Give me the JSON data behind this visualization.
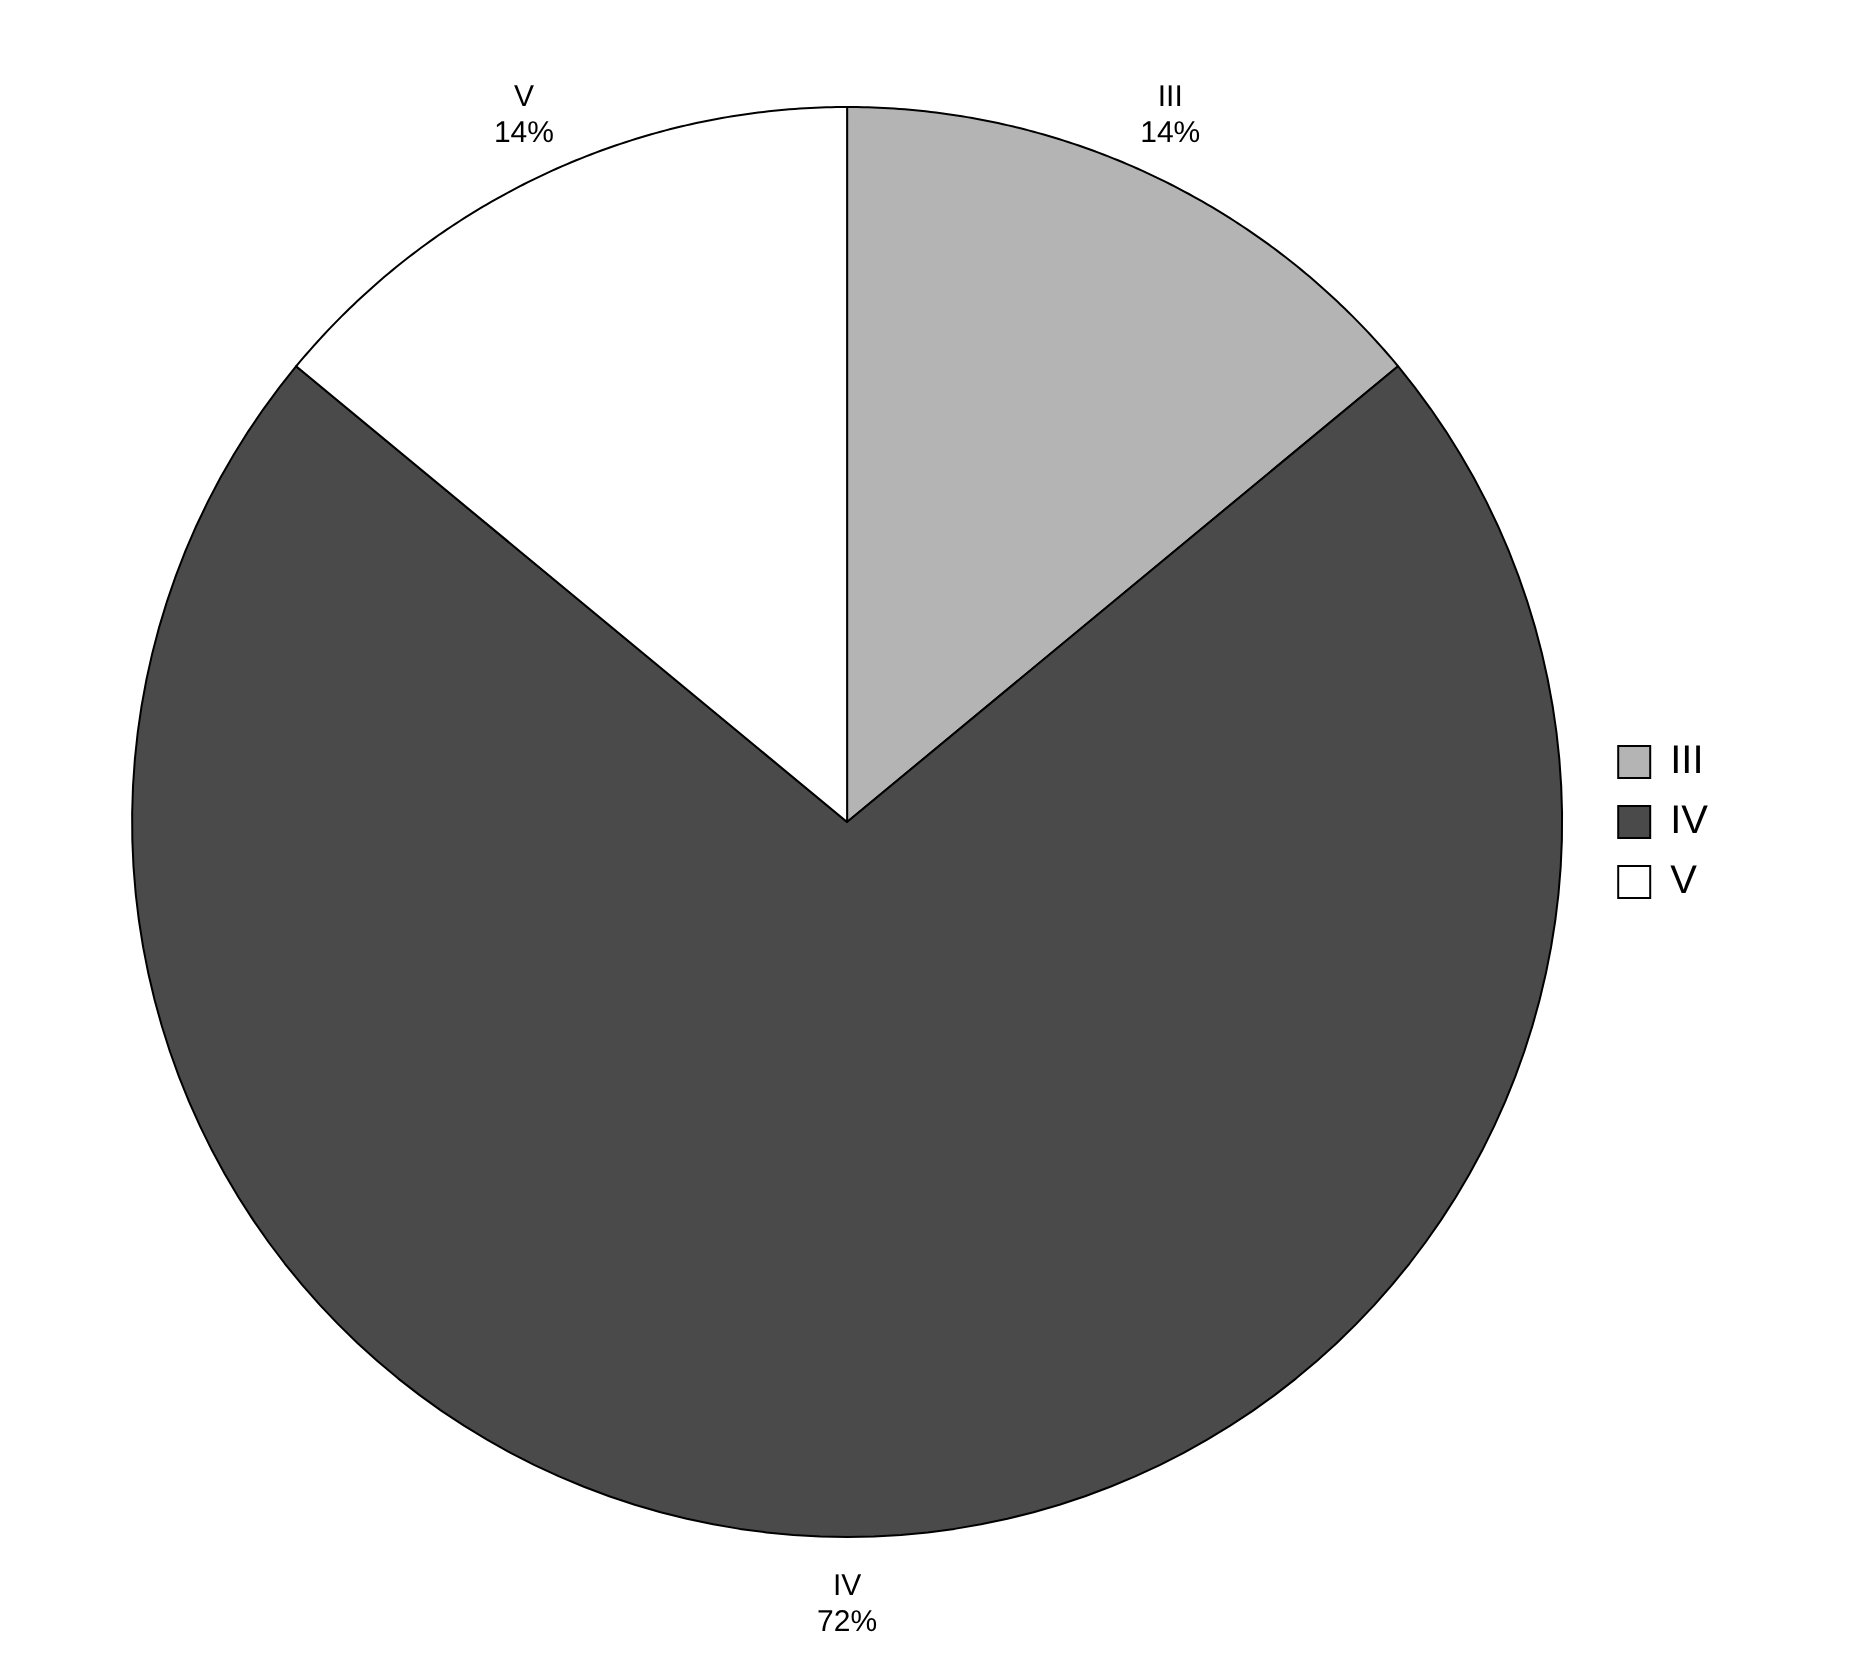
{
  "chart_data": {
    "type": "pie",
    "categories": [
      "III",
      "IV",
      "V"
    ],
    "values": [
      14,
      72,
      14
    ],
    "value_labels": [
      "14%",
      "72%",
      "14%"
    ],
    "colors": [
      "#b4b4b4",
      "#4a4a4a",
      "#ffffff"
    ],
    "legend": "right"
  }
}
